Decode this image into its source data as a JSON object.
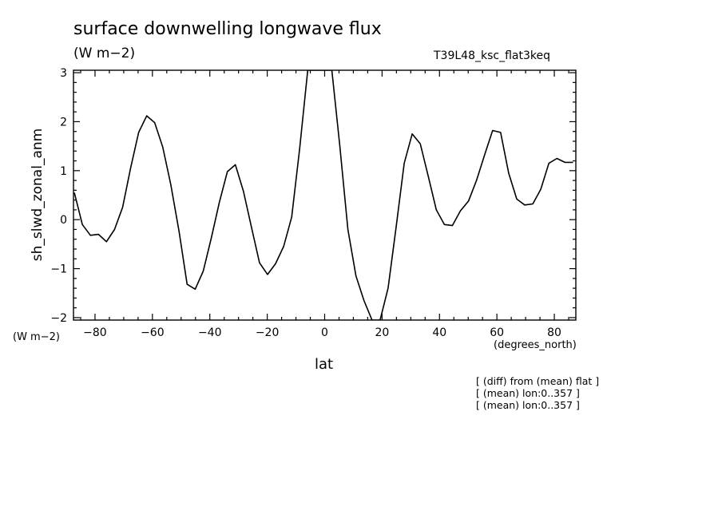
{
  "header": {
    "title": "surface downwelling longwave flux",
    "units": "(W m−2)",
    "run_name": "T39L48_ksc_flat3keq"
  },
  "axes": {
    "y_units": "(W m−2)",
    "x_units": "(degrees_north)"
  },
  "notes": [
    "[ (diff) from (mean) flat ]",
    "[ (mean) lon:0..357 ]",
    "[ (mean) lon:0..357 ]"
  ],
  "chart_data": {
    "type": "line",
    "title": "surface downwelling longwave flux",
    "xlabel": "lat",
    "ylabel": "sh_slwd_zonal_anm",
    "xlim": [
      -87.5,
      87.5
    ],
    "ylim": [
      -2.05,
      3.05
    ],
    "x_ticks": [
      -80,
      -60,
      -40,
      -20,
      0,
      20,
      40,
      60,
      80
    ],
    "x_tick_labels": [
      "−80",
      "−60",
      "−40",
      "−20",
      "0",
      "20",
      "40",
      "60",
      "80"
    ],
    "y_ticks": [
      -2,
      -1,
      0,
      1,
      2,
      3
    ],
    "y_tick_labels": [
      "−2",
      "−1",
      "0",
      "1",
      "2",
      "3"
    ],
    "grid": false,
    "series": [
      {
        "x": [
          -87.2,
          -84.4,
          -81.6,
          -78.8,
          -76.0,
          -73.2,
          -70.4,
          -67.6,
          -64.8,
          -62.0,
          -59.2,
          -56.4,
          -53.6,
          -50.7,
          -47.9,
          -45.1,
          -42.3,
          -39.5,
          -36.7,
          -33.9,
          -31.1,
          -28.3,
          -25.5,
          -22.7,
          -19.9,
          -17.1,
          -14.3,
          -11.5,
          -8.7,
          -5.9,
          -3.1,
          -0.3,
          2.5,
          5.3,
          8.1,
          10.9,
          13.7,
          16.5,
          19.3,
          22.1,
          24.9,
          27.7,
          30.5,
          33.3,
          36.1,
          38.9,
          41.7,
          44.5,
          47.3,
          50.1,
          52.9,
          55.7,
          58.5,
          61.3,
          64.1,
          66.9,
          69.7,
          72.5,
          75.3,
          78.1,
          80.9,
          83.7,
          86.5
        ],
        "y": [
          0.55,
          -0.1,
          -0.32,
          -0.3,
          -0.45,
          -0.2,
          0.25,
          1.05,
          1.78,
          2.12,
          1.98,
          1.48,
          0.72,
          -0.25,
          -1.32,
          -1.42,
          -1.05,
          -0.38,
          0.35,
          0.98,
          1.12,
          0.58,
          -0.15,
          -0.88,
          -1.12,
          -0.9,
          -0.55,
          0.05,
          1.45,
          3.05,
          3.05,
          3.05,
          3.05,
          1.5,
          -0.2,
          -1.15,
          -1.65,
          -2.05,
          -2.05,
          -1.4,
          -0.15,
          1.15,
          1.75,
          1.55,
          0.88,
          0.2,
          -0.1,
          -0.12,
          0.18,
          0.38,
          0.8,
          1.32,
          1.82,
          1.78,
          0.95,
          0.42,
          0.3,
          0.32,
          0.62,
          1.15,
          1.25,
          1.17,
          1.17
        ]
      }
    ]
  }
}
